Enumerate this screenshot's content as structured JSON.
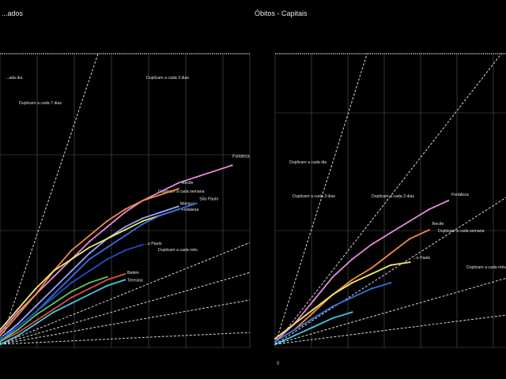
{
  "chart_data": [
    {
      "type": "line",
      "title": "...ados",
      "xlabel": "",
      "ylabel": "",
      "yscale": "log",
      "grid": true,
      "x_ticks": [
        "",
        "",
        "",
        "",
        "",
        "",
        "",
        ""
      ],
      "y_ticks": [],
      "xlim": [
        0,
        70
      ],
      "ref_lines": [
        {
          "label": "...ada dia",
          "slope": 3.0
        },
        {
          "label": "Duplicam a cada 3 dias",
          "slope": 0.42
        },
        {
          "label": "Duplicam a cada 7 dias",
          "slope": 0.3
        },
        {
          "label": "Duplicam a cada semana",
          "slope": 0.19
        },
        {
          "label": "Duplicam a cada mês",
          "slope": 0.06
        }
      ],
      "series": [
        {
          "name": "Fortaleza",
          "color": "#e58ad8",
          "x": [
            0,
            5,
            10,
            15,
            20,
            25,
            30,
            35,
            40,
            45,
            50,
            55,
            60,
            65
          ],
          "y": [
            0.05,
            0.12,
            0.18,
            0.24,
            0.3,
            0.36,
            0.41,
            0.46,
            0.5,
            0.53,
            0.56,
            0.58,
            0.6,
            0.62
          ]
        },
        {
          "name": "Recife",
          "color": "#f08a48",
          "x": [
            0,
            5,
            10,
            15,
            20,
            25,
            30,
            35,
            40,
            45,
            50
          ],
          "y": [
            0.04,
            0.11,
            0.18,
            0.26,
            0.33,
            0.38,
            0.43,
            0.47,
            0.5,
            0.52,
            0.54
          ]
        },
        {
          "name": "Manaus",
          "color": "#9aa4ff",
          "x": [
            0,
            5,
            10,
            15,
            20,
            25,
            30,
            35,
            40,
            45,
            50
          ],
          "y": [
            0.03,
            0.08,
            0.14,
            0.2,
            0.26,
            0.32,
            0.37,
            0.41,
            0.44,
            0.46,
            0.48
          ]
        },
        {
          "name": "Fortaleza",
          "color": "#f4e66a",
          "x": [
            0,
            5,
            10,
            15,
            20,
            25,
            30,
            35,
            40,
            45,
            50
          ],
          "y": [
            0.06,
            0.13,
            0.2,
            0.26,
            0.3,
            0.34,
            0.37,
            0.4,
            0.43,
            0.45,
            0.47
          ]
        },
        {
          "name": "São Paulo",
          "color": "#3a6fe0",
          "x": [
            0,
            5,
            10,
            15,
            20,
            25,
            30,
            35,
            40,
            45,
            50,
            55
          ],
          "y": [
            0.02,
            0.07,
            0.12,
            0.18,
            0.24,
            0.3,
            0.34,
            0.38,
            0.42,
            0.45,
            0.47,
            0.49
          ]
        },
        {
          "name": "...o Paulo",
          "color": "#1f50c8",
          "x": [
            0,
            5,
            10,
            15,
            20,
            25,
            30,
            35,
            40
          ],
          "y": [
            0.03,
            0.07,
            0.12,
            0.17,
            0.22,
            0.26,
            0.3,
            0.33,
            0.35
          ]
        },
        {
          "name": "Belém",
          "color": "#e04a4a",
          "x": [
            0,
            5,
            10,
            15,
            20,
            25,
            30,
            35
          ],
          "y": [
            0.02,
            0.05,
            0.09,
            0.13,
            0.17,
            0.2,
            0.23,
            0.25
          ]
        },
        {
          "name": "",
          "color": "#5ac85a",
          "x": [
            0,
            5,
            10,
            15,
            20,
            25,
            30
          ],
          "y": [
            0.02,
            0.06,
            0.11,
            0.15,
            0.19,
            0.22,
            0.24
          ]
        },
        {
          "name": "Teresina",
          "color": "#46c8e0",
          "x": [
            0,
            5,
            10,
            15,
            20,
            25,
            30,
            35
          ],
          "y": [
            0.01,
            0.04,
            0.08,
            0.12,
            0.15,
            0.18,
            0.21,
            0.23
          ]
        }
      ]
    },
    {
      "type": "line",
      "title": "Óbitos - Capitais",
      "xlabel": "",
      "ylabel": "",
      "yscale": "log",
      "grid": true,
      "x_ticks": [
        "0",
        "",
        "",
        "",
        "",
        "",
        "",
        ""
      ],
      "y_ticks": [],
      "xlim": [
        0,
        60
      ],
      "ref_lines": [
        {
          "label": "Duplicam a cada dia",
          "slope": 3.2
        },
        {
          "label": "Duplicam a cada 3 dias",
          "slope": 1.3
        },
        {
          "label": "Duplicam a cada 3 dias",
          "slope": 0.65
        },
        {
          "label": "Duplicam a cada semana",
          "slope": 0.3
        },
        {
          "label": "Duplicam a cada mês",
          "slope": 0.14
        }
      ],
      "series": [
        {
          "name": "Fortaleza",
          "color": "#e58ad8",
          "x": [
            0,
            5,
            10,
            15,
            20,
            25,
            30,
            35,
            40,
            45
          ],
          "y": [
            0.02,
            0.08,
            0.16,
            0.24,
            0.3,
            0.35,
            0.39,
            0.43,
            0.47,
            0.5
          ]
        },
        {
          "name": "Recife",
          "color": "#f08a48",
          "x": [
            0,
            5,
            10,
            15,
            20,
            25,
            30,
            35,
            40
          ],
          "y": [
            0.02,
            0.06,
            0.12,
            0.18,
            0.23,
            0.27,
            0.32,
            0.37,
            0.4
          ]
        },
        {
          "name": "...o Paulo",
          "color": "#f4e66a",
          "x": [
            0,
            5,
            10,
            15,
            20,
            25,
            30,
            35
          ],
          "y": [
            0.03,
            0.08,
            0.13,
            0.18,
            0.22,
            0.25,
            0.28,
            0.29
          ]
        },
        {
          "name": "",
          "color": "#3a6fe0",
          "x": [
            0,
            5,
            10,
            15,
            20,
            25,
            30
          ],
          "y": [
            0.02,
            0.06,
            0.1,
            0.14,
            0.17,
            0.2,
            0.22
          ]
        },
        {
          "name": "",
          "color": "#46c8e0",
          "x": [
            0,
            5,
            10,
            15,
            20
          ],
          "y": [
            0.01,
            0.04,
            0.07,
            0.1,
            0.12
          ]
        }
      ]
    }
  ]
}
